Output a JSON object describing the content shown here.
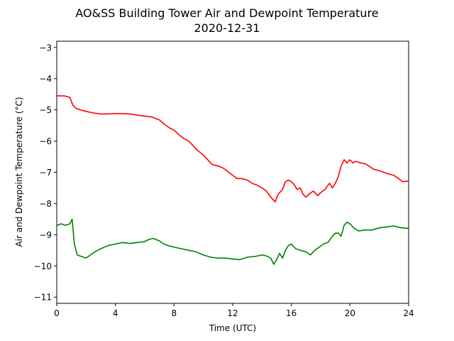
{
  "chart_data": {
    "type": "line",
    "title": "AO&SS Building Tower Air and Dewpoint Temperature",
    "subtitle": "2020-12-31",
    "xlabel": "Time (UTC)",
    "ylabel": "Air and Dewpoint Temperature (°C)",
    "xlim": [
      0,
      24
    ],
    "ylim": [
      -11.2,
      -2.8
    ],
    "xticks": [
      0,
      4,
      8,
      12,
      16,
      20,
      24
    ],
    "yticks": [
      -11,
      -10,
      -9,
      -8,
      -7,
      -6,
      -5,
      -4,
      -3
    ],
    "grid": false,
    "legend": "none",
    "series": [
      {
        "color": "#ff0000",
        "x": [
          0,
          0.5,
          0.9,
          1.1,
          1.3,
          1.6,
          2,
          2.5,
          3,
          3.5,
          4,
          4.5,
          5,
          5.5,
          6,
          6.5,
          7,
          7.3,
          7.7,
          8,
          8.3,
          8.6,
          9,
          9.3,
          9.6,
          10,
          10.3,
          10.6,
          11,
          11.3,
          11.6,
          12,
          12.3,
          12.6,
          13,
          13.3,
          13.6,
          14,
          14.3,
          14.6,
          14.9,
          15.1,
          15.4,
          15.6,
          15.8,
          16,
          16.2,
          16.4,
          16.6,
          16.8,
          17,
          17.2,
          17.5,
          17.8,
          18,
          18.3,
          18.6,
          18.8,
          19,
          19.2,
          19.4,
          19.6,
          19.8,
          20,
          20.2,
          20.4,
          20.7,
          21,
          21.3,
          21.6,
          22,
          22.3,
          22.6,
          23,
          23.3,
          23.6,
          24
        ],
        "y": [
          -4.55,
          -4.55,
          -4.6,
          -4.85,
          -4.95,
          -5.0,
          -5.05,
          -5.1,
          -5.13,
          -5.13,
          -5.12,
          -5.12,
          -5.13,
          -5.17,
          -5.2,
          -5.23,
          -5.32,
          -5.45,
          -5.58,
          -5.65,
          -5.78,
          -5.9,
          -6.0,
          -6.15,
          -6.3,
          -6.45,
          -6.6,
          -6.75,
          -6.8,
          -6.85,
          -6.95,
          -7.1,
          -7.2,
          -7.2,
          -7.25,
          -7.35,
          -7.4,
          -7.5,
          -7.6,
          -7.8,
          -7.95,
          -7.7,
          -7.55,
          -7.3,
          -7.25,
          -7.3,
          -7.4,
          -7.55,
          -7.5,
          -7.7,
          -7.8,
          -7.7,
          -7.6,
          -7.75,
          -7.65,
          -7.55,
          -7.35,
          -7.5,
          -7.35,
          -7.15,
          -6.8,
          -6.6,
          -6.7,
          -6.6,
          -6.7,
          -6.65,
          -6.7,
          -6.72,
          -6.8,
          -6.9,
          -6.95,
          -7.0,
          -7.05,
          -7.1,
          -7.2,
          -7.3,
          -7.28
        ]
      },
      {
        "color": "#008000",
        "x": [
          0,
          0.3,
          0.6,
          0.9,
          1.05,
          1.2,
          1.4,
          1.7,
          2,
          2.3,
          2.6,
          3,
          3.5,
          4,
          4.5,
          5,
          5.5,
          6,
          6.3,
          6.6,
          7,
          7.3,
          7.6,
          8,
          8.5,
          9,
          9.5,
          10,
          10.5,
          11,
          11.5,
          12,
          12.5,
          13,
          13.5,
          14,
          14.3,
          14.6,
          14.8,
          15,
          15.2,
          15.4,
          15.6,
          15.8,
          16,
          16.3,
          16.6,
          17,
          17.3,
          17.6,
          17.9,
          18.2,
          18.5,
          18.8,
          19,
          19.2,
          19.4,
          19.6,
          19.8,
          20,
          20.3,
          20.6,
          21,
          21.5,
          22,
          22.5,
          23,
          23.5,
          24
        ],
        "y": [
          -8.7,
          -8.65,
          -8.7,
          -8.65,
          -8.5,
          -9.3,
          -9.65,
          -9.7,
          -9.75,
          -9.65,
          -9.55,
          -9.45,
          -9.35,
          -9.3,
          -9.25,
          -9.28,
          -9.25,
          -9.22,
          -9.15,
          -9.12,
          -9.2,
          -9.3,
          -9.35,
          -9.4,
          -9.45,
          -9.5,
          -9.55,
          -9.65,
          -9.72,
          -9.75,
          -9.75,
          -9.78,
          -9.8,
          -9.72,
          -9.7,
          -9.65,
          -9.68,
          -9.75,
          -9.95,
          -9.8,
          -9.6,
          -9.75,
          -9.5,
          -9.35,
          -9.3,
          -9.45,
          -9.5,
          -9.55,
          -9.65,
          -9.5,
          -9.4,
          -9.3,
          -9.25,
          -9.05,
          -8.95,
          -8.95,
          -9.05,
          -8.7,
          -8.6,
          -8.65,
          -8.8,
          -8.88,
          -8.85,
          -8.85,
          -8.78,
          -8.75,
          -8.72,
          -8.78,
          -8.8
        ]
      }
    ]
  }
}
